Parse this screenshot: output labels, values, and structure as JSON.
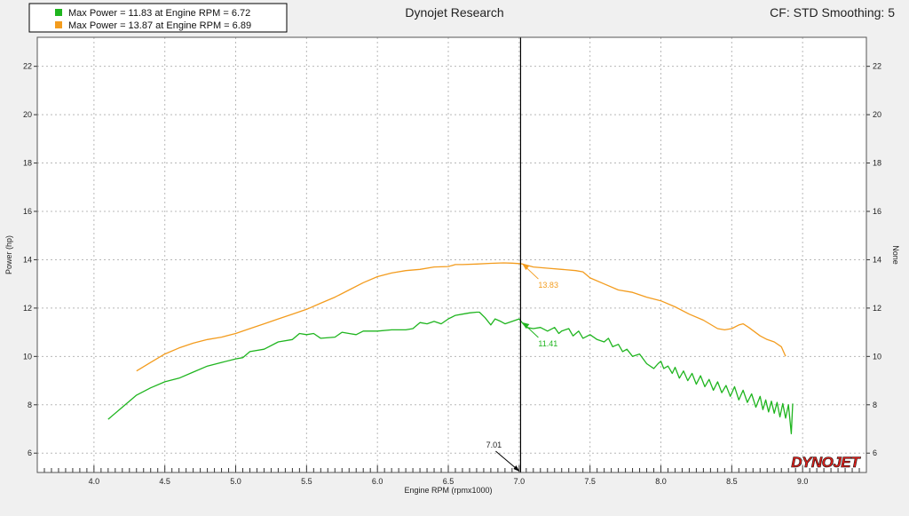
{
  "header": {
    "title": "Dynojet Research",
    "cf_smoothing": "CF: STD Smoothing: 5"
  },
  "logo": {
    "text": "DYNOJET"
  },
  "chart_data": {
    "type": "line",
    "title": "Dynojet Research",
    "xlabel": "Engine RPM (rpmx1000)",
    "ylabel": "Power (hp)",
    "y2label": "None",
    "xlim": [
      3.6,
      9.45
    ],
    "ylim": [
      5.2,
      23.2
    ],
    "x_ticks": [
      4.0,
      4.5,
      5.0,
      5.5,
      6.0,
      6.5,
      7.0,
      7.5,
      8.0,
      8.5,
      9.0
    ],
    "x_tick_labels": [
      "4.0",
      "4.5",
      "5.0",
      "5.5",
      "6.0",
      "6.5",
      "7.0",
      "7.5",
      "8.0",
      "8.5",
      "9.0"
    ],
    "y_ticks": [
      6,
      8,
      10,
      12,
      14,
      16,
      18,
      20,
      22
    ],
    "y_tick_labels": [
      "6",
      "8",
      "10",
      "12",
      "14",
      "16",
      "18",
      "20",
      "22"
    ],
    "grid": true,
    "legend_position": "top-left",
    "cursor": {
      "x": 7.01,
      "label": "7.01"
    },
    "series": [
      {
        "name": "Max Power = 11.83 at Engine RPM = 6.72",
        "color": "#1fb51f",
        "cursor_value_label": "11.41",
        "cursor_value": 11.41,
        "points": [
          [
            4.1,
            7.4
          ],
          [
            4.2,
            7.9
          ],
          [
            4.3,
            8.4
          ],
          [
            4.4,
            8.7
          ],
          [
            4.5,
            8.95
          ],
          [
            4.6,
            9.1
          ],
          [
            4.7,
            9.35
          ],
          [
            4.8,
            9.6
          ],
          [
            4.9,
            9.75
          ],
          [
            5.0,
            9.9
          ],
          [
            5.05,
            9.95
          ],
          [
            5.1,
            10.2
          ],
          [
            5.2,
            10.3
          ],
          [
            5.3,
            10.6
          ],
          [
            5.4,
            10.7
          ],
          [
            5.45,
            10.95
          ],
          [
            5.5,
            10.9
          ],
          [
            5.55,
            10.95
          ],
          [
            5.6,
            10.75
          ],
          [
            5.7,
            10.8
          ],
          [
            5.75,
            11.0
          ],
          [
            5.8,
            10.95
          ],
          [
            5.85,
            10.9
          ],
          [
            5.9,
            11.05
          ],
          [
            6.0,
            11.05
          ],
          [
            6.1,
            11.1
          ],
          [
            6.2,
            11.1
          ],
          [
            6.25,
            11.15
          ],
          [
            6.3,
            11.4
          ],
          [
            6.35,
            11.35
          ],
          [
            6.4,
            11.45
          ],
          [
            6.45,
            11.35
          ],
          [
            6.5,
            11.55
          ],
          [
            6.55,
            11.7
          ],
          [
            6.6,
            11.75
          ],
          [
            6.65,
            11.8
          ],
          [
            6.7,
            11.83
          ],
          [
            6.72,
            11.83
          ],
          [
            6.76,
            11.6
          ],
          [
            6.8,
            11.3
          ],
          [
            6.83,
            11.55
          ],
          [
            6.87,
            11.45
          ],
          [
            6.9,
            11.35
          ],
          [
            6.95,
            11.45
          ],
          [
            7.0,
            11.55
          ],
          [
            7.02,
            11.41
          ],
          [
            7.05,
            11.2
          ],
          [
            7.1,
            11.15
          ],
          [
            7.15,
            11.2
          ],
          [
            7.2,
            11.05
          ],
          [
            7.25,
            11.2
          ],
          [
            7.28,
            10.95
          ],
          [
            7.3,
            11.05
          ],
          [
            7.35,
            11.15
          ],
          [
            7.38,
            10.85
          ],
          [
            7.42,
            11.05
          ],
          [
            7.45,
            10.75
          ],
          [
            7.5,
            10.9
          ],
          [
            7.55,
            10.7
          ],
          [
            7.6,
            10.6
          ],
          [
            7.63,
            10.75
          ],
          [
            7.66,
            10.4
          ],
          [
            7.7,
            10.5
          ],
          [
            7.73,
            10.2
          ],
          [
            7.76,
            10.3
          ],
          [
            7.8,
            10.0
          ],
          [
            7.85,
            10.1
          ],
          [
            7.9,
            9.7
          ],
          [
            7.95,
            9.5
          ],
          [
            7.98,
            9.7
          ],
          [
            8.0,
            9.8
          ],
          [
            8.02,
            9.5
          ],
          [
            8.05,
            9.6
          ],
          [
            8.08,
            9.3
          ],
          [
            8.1,
            9.55
          ],
          [
            8.13,
            9.1
          ],
          [
            8.16,
            9.4
          ],
          [
            8.19,
            9.0
          ],
          [
            8.22,
            9.3
          ],
          [
            8.25,
            8.85
          ],
          [
            8.28,
            9.2
          ],
          [
            8.31,
            8.75
          ],
          [
            8.34,
            9.05
          ],
          [
            8.37,
            8.6
          ],
          [
            8.4,
            8.95
          ],
          [
            8.43,
            8.5
          ],
          [
            8.46,
            8.8
          ],
          [
            8.49,
            8.35
          ],
          [
            8.52,
            8.75
          ],
          [
            8.55,
            8.2
          ],
          [
            8.58,
            8.6
          ],
          [
            8.61,
            8.1
          ],
          [
            8.64,
            8.45
          ],
          [
            8.67,
            7.9
          ],
          [
            8.7,
            8.35
          ],
          [
            8.72,
            7.8
          ],
          [
            8.74,
            8.2
          ],
          [
            8.76,
            7.7
          ],
          [
            8.78,
            8.15
          ],
          [
            8.8,
            7.65
          ],
          [
            8.82,
            8.1
          ],
          [
            8.84,
            7.5
          ],
          [
            8.86,
            8.05
          ],
          [
            8.88,
            7.45
          ],
          [
            8.9,
            8.0
          ],
          [
            8.92,
            6.8
          ],
          [
            8.93,
            8.05
          ]
        ]
      },
      {
        "name": "Max Power = 13.87 at Engine RPM = 6.89",
        "color": "#f39c1e",
        "cursor_value_label": "13.83",
        "cursor_value": 13.83,
        "points": [
          [
            4.3,
            9.4
          ],
          [
            4.4,
            9.75
          ],
          [
            4.5,
            10.1
          ],
          [
            4.6,
            10.35
          ],
          [
            4.7,
            10.55
          ],
          [
            4.8,
            10.7
          ],
          [
            4.9,
            10.8
          ],
          [
            5.0,
            10.95
          ],
          [
            5.1,
            11.15
          ],
          [
            5.2,
            11.35
          ],
          [
            5.3,
            11.55
          ],
          [
            5.4,
            11.75
          ],
          [
            5.5,
            11.95
          ],
          [
            5.6,
            12.2
          ],
          [
            5.7,
            12.45
          ],
          [
            5.8,
            12.75
          ],
          [
            5.9,
            13.05
          ],
          [
            6.0,
            13.3
          ],
          [
            6.1,
            13.45
          ],
          [
            6.2,
            13.55
          ],
          [
            6.3,
            13.6
          ],
          [
            6.4,
            13.7
          ],
          [
            6.5,
            13.72
          ],
          [
            6.55,
            13.8
          ],
          [
            6.6,
            13.8
          ],
          [
            6.7,
            13.82
          ],
          [
            6.8,
            13.85
          ],
          [
            6.89,
            13.87
          ],
          [
            6.95,
            13.86
          ],
          [
            7.0,
            13.84
          ],
          [
            7.02,
            13.83
          ],
          [
            7.1,
            13.7
          ],
          [
            7.2,
            13.65
          ],
          [
            7.3,
            13.6
          ],
          [
            7.4,
            13.55
          ],
          [
            7.45,
            13.5
          ],
          [
            7.5,
            13.25
          ],
          [
            7.6,
            13.0
          ],
          [
            7.7,
            12.75
          ],
          [
            7.8,
            12.65
          ],
          [
            7.9,
            12.45
          ],
          [
            8.0,
            12.3
          ],
          [
            8.1,
            12.05
          ],
          [
            8.2,
            11.75
          ],
          [
            8.3,
            11.5
          ],
          [
            8.4,
            11.15
          ],
          [
            8.45,
            11.1
          ],
          [
            8.5,
            11.15
          ],
          [
            8.55,
            11.3
          ],
          [
            8.58,
            11.35
          ],
          [
            8.62,
            11.2
          ],
          [
            8.7,
            10.85
          ],
          [
            8.75,
            10.7
          ],
          [
            8.8,
            10.6
          ],
          [
            8.85,
            10.4
          ],
          [
            8.88,
            10.0
          ]
        ]
      }
    ]
  }
}
